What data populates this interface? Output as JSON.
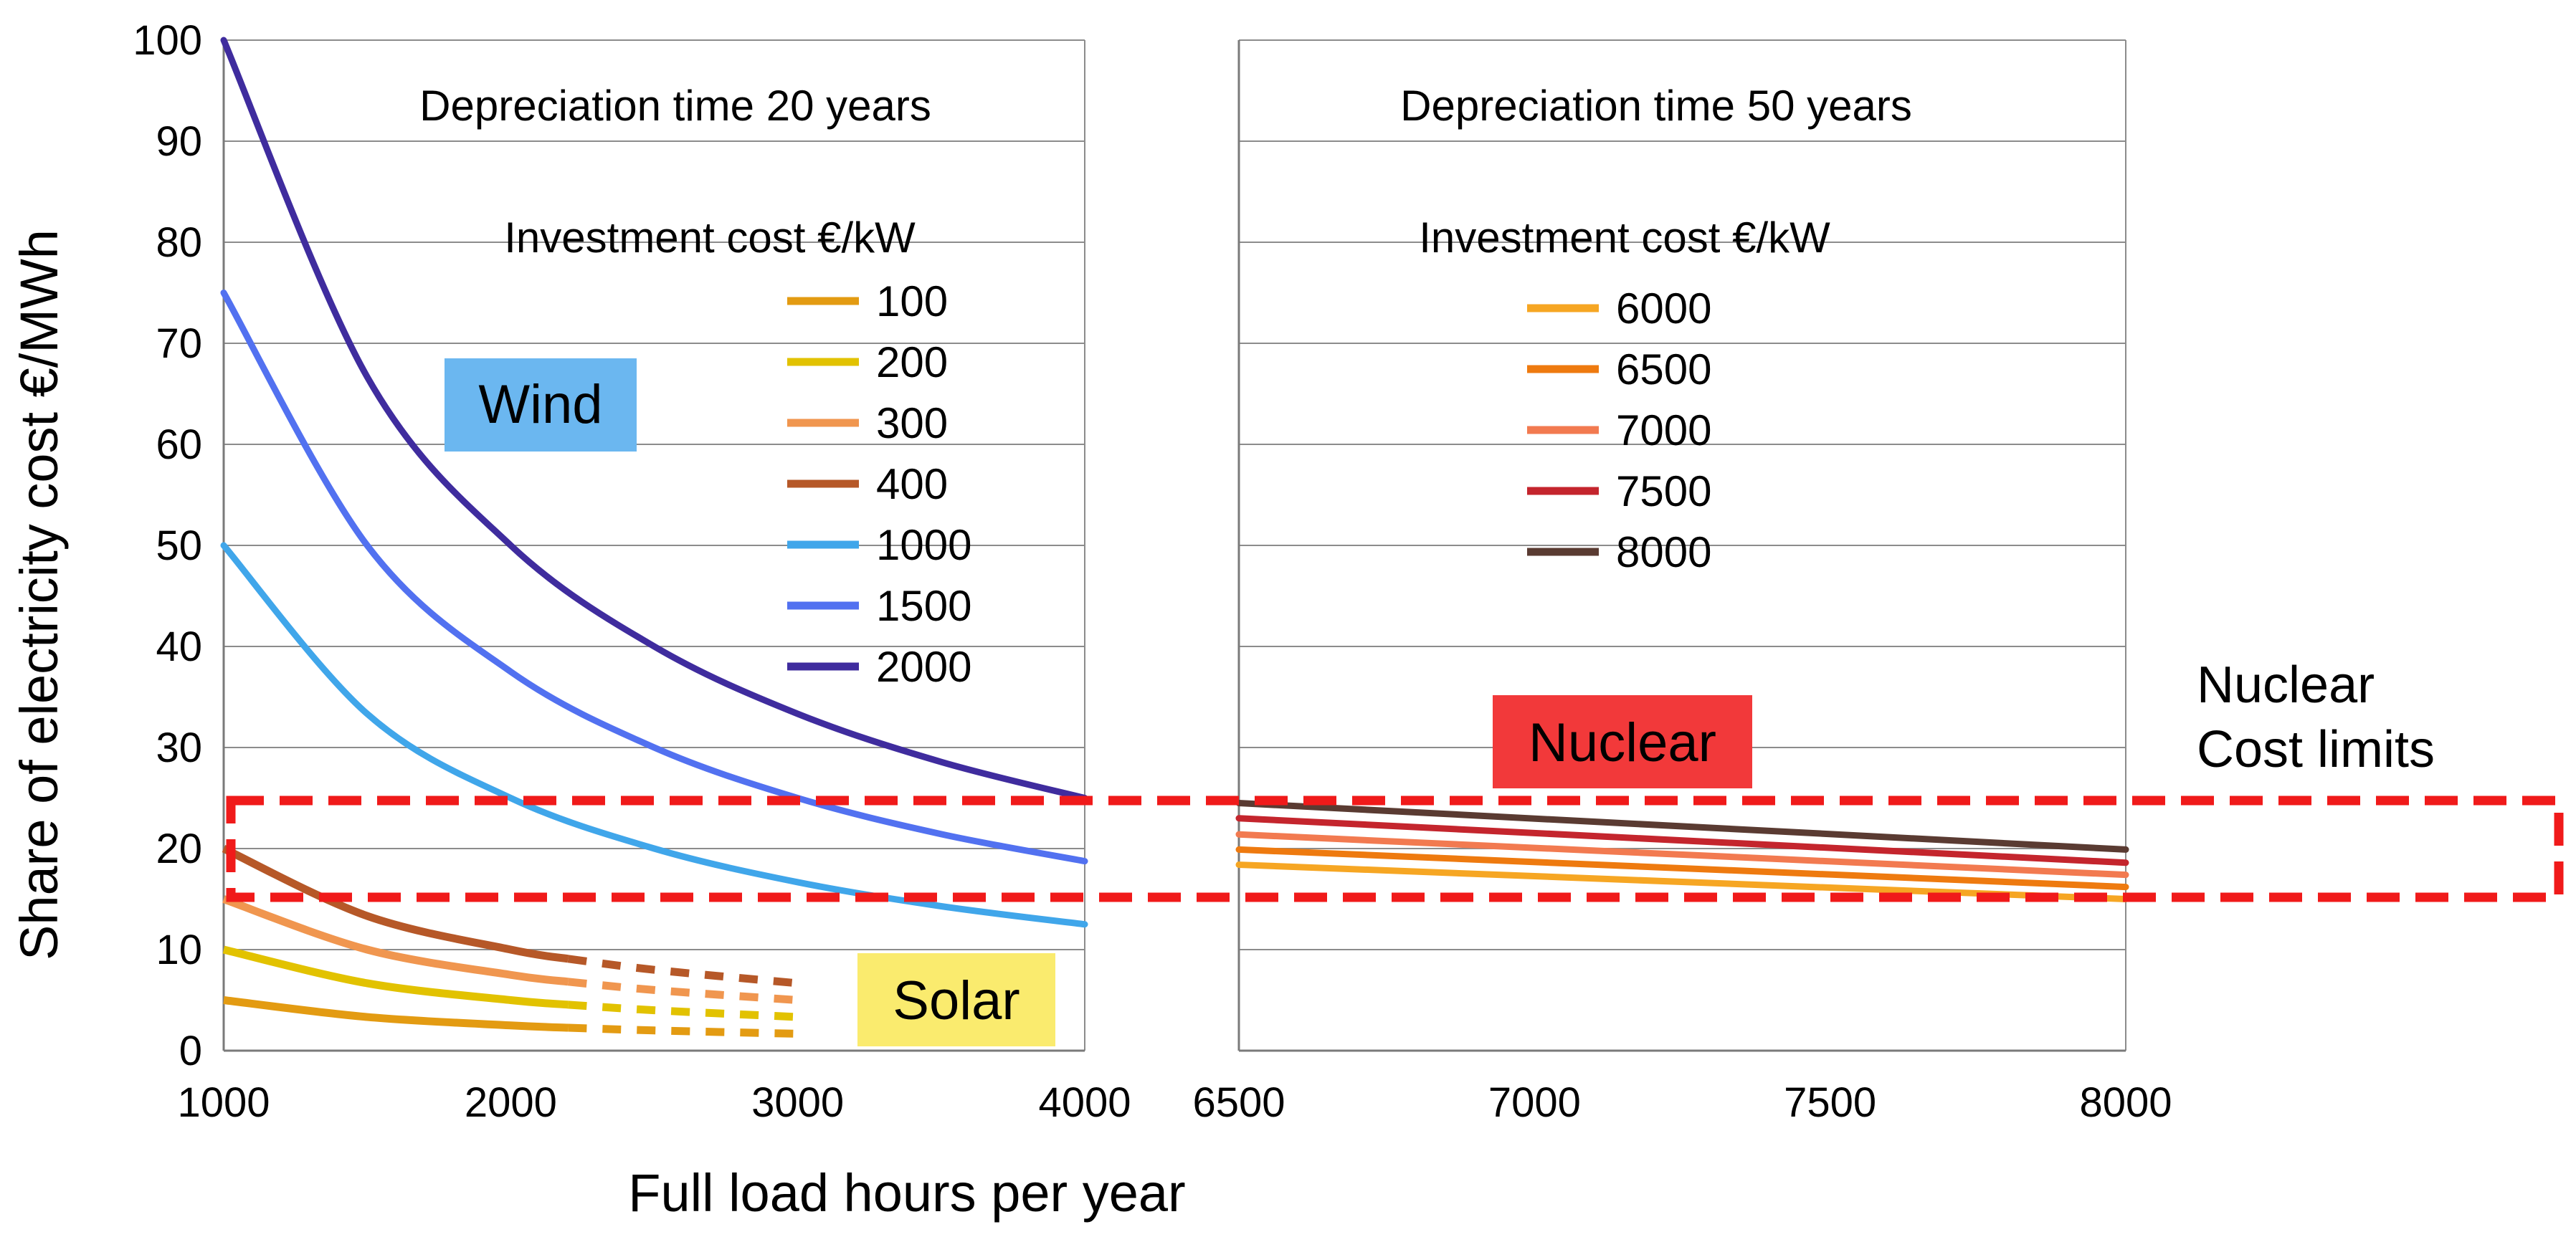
{
  "chart_data": {
    "type": "line",
    "ylabel": "Share of electricity cost €/MWh",
    "xlabel": "Full load hours per year",
    "ylim": [
      0,
      100
    ],
    "yticks": [
      "0",
      "10",
      "20",
      "30",
      "40",
      "50",
      "60",
      "70",
      "80",
      "90",
      "100"
    ],
    "grid": true,
    "panels": [
      {
        "title": "Depreciation time 20 years",
        "legend_title": "Investment cost €/kW",
        "xlim": [
          1000,
          4000
        ],
        "xticks": [
          "1000",
          "2000",
          "3000",
          "4000"
        ],
        "series": [
          {
            "name": "100",
            "color": "#E39B12",
            "x": [
              1000,
              1500,
              2000,
              2200,
              2500,
              3000
            ],
            "y": [
              5,
              3.33,
              2.5,
              2.27,
              2.0,
              1.67
            ],
            "dashed_from": 2200
          },
          {
            "name": "200",
            "color": "#E2C200",
            "x": [
              1000,
              1500,
              2000,
              2200,
              2500,
              3000
            ],
            "y": [
              10,
              6.67,
              5.0,
              4.55,
              4.0,
              3.33
            ],
            "dashed_from": 2200
          },
          {
            "name": "300",
            "color": "#F0964F",
            "x": [
              1000,
              1500,
              2000,
              2200,
              2500,
              3000
            ],
            "y": [
              15,
              10.0,
              7.5,
              6.82,
              6.0,
              5.0
            ],
            "dashed_from": 2200
          },
          {
            "name": "400",
            "color": "#B65828",
            "x": [
              1000,
              1500,
              2000,
              2200,
              2500,
              3000
            ],
            "y": [
              20,
              13.33,
              10.0,
              9.09,
              8.0,
              6.67
            ],
            "dashed_from": 2200
          },
          {
            "name": "1000",
            "color": "#40A6EA",
            "x": [
              1000,
              1500,
              2000,
              2500,
              3000,
              3500,
              4000
            ],
            "y": [
              50,
              33.33,
              25.0,
              20.0,
              16.67,
              14.29,
              12.5
            ]
          },
          {
            "name": "1500",
            "color": "#5271F0",
            "x": [
              1000,
              1500,
              2000,
              2500,
              3000,
              3500,
              4000
            ],
            "y": [
              75,
              50.0,
              37.5,
              30.0,
              25.0,
              21.43,
              18.75
            ]
          },
          {
            "name": "2000",
            "color": "#3F2C9E",
            "x": [
              1000,
              1500,
              2000,
              2500,
              3000,
              3500,
              4000
            ],
            "y": [
              100,
              66.67,
              50.0,
              40.0,
              33.33,
              28.57,
              25.0
            ]
          }
        ]
      },
      {
        "title": "Depreciation time 50 years",
        "legend_title": "Investment cost €/kW",
        "xlim": [
          6500,
          8000
        ],
        "xticks": [
          "6500",
          "7000",
          "7500",
          "8000"
        ],
        "series": [
          {
            "name": "6000",
            "color": "#F6A623",
            "x": [
              6500,
              8000
            ],
            "y": [
              18.4,
              15.0
            ]
          },
          {
            "name": "6500",
            "color": "#EE7A0F",
            "x": [
              6500,
              8000
            ],
            "y": [
              19.9,
              16.2
            ]
          },
          {
            "name": "7000",
            "color": "#F27A50",
            "x": [
              6500,
              8000
            ],
            "y": [
              21.4,
              17.4
            ]
          },
          {
            "name": "7500",
            "color": "#C4252D",
            "x": [
              6500,
              8000
            ],
            "y": [
              23.0,
              18.6
            ]
          },
          {
            "name": "8000",
            "color": "#5A3B32",
            "x": [
              6500,
              8000
            ],
            "y": [
              24.5,
              19.9
            ]
          }
        ]
      }
    ],
    "annotations": {
      "wind": {
        "text": "Wind",
        "bg": "#6BB7F0"
      },
      "solar": {
        "text": "Solar",
        "bg": "#FAEB6E"
      },
      "nuclear": {
        "text": "Nuclear",
        "bg": "#F2393A"
      },
      "nuclear_cost_limits": {
        "line1": "Nuclear",
        "line2": "Cost limits",
        "range": [
          15,
          25
        ],
        "color": "#F01A1A"
      }
    }
  }
}
